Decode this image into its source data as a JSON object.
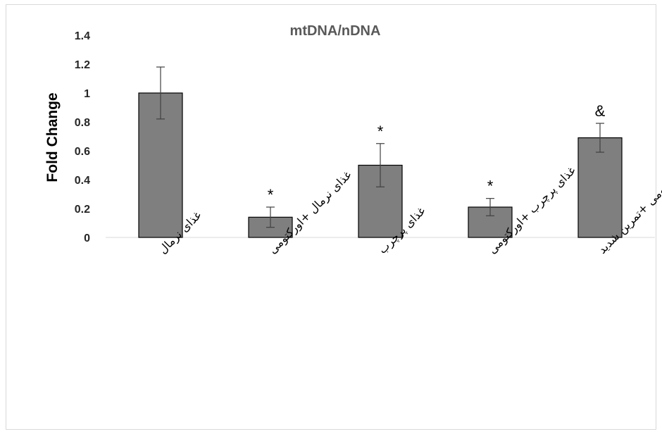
{
  "chart_data": {
    "type": "bar",
    "title": "mtDNA/nDNA",
    "xlabel": "",
    "ylabel": "Fold Change",
    "ylim": [
      0,
      1.4
    ],
    "yticks": [
      "0",
      "0.2",
      "0.4",
      "0.6",
      "0.8",
      "1",
      "1.2",
      "1.4"
    ],
    "grid": false,
    "categories": [
      "غذای نرمال",
      "غذای نرمال +اورکتومی",
      "غذای پرچرب",
      "غذای پرچرب +اورکتومی",
      "غذای پرچرب+اورکتومی +تمرین شدید"
    ],
    "values": [
      1.0,
      0.14,
      0.5,
      0.21,
      0.69
    ],
    "errors": [
      0.18,
      0.07,
      0.15,
      0.06,
      0.1
    ],
    "annotations": [
      "",
      "*",
      "*",
      "*",
      "&"
    ],
    "bar_color": "#7f7f7f",
    "bar_edge_color": "#000000"
  }
}
